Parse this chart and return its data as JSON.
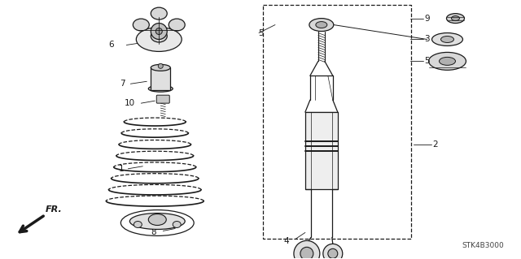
{
  "bg_color": "#ffffff",
  "line_color": "#1a1a1a",
  "fig_width": 6.4,
  "fig_height": 3.19,
  "dpi": 100,
  "watermark": "STK4B3000"
}
